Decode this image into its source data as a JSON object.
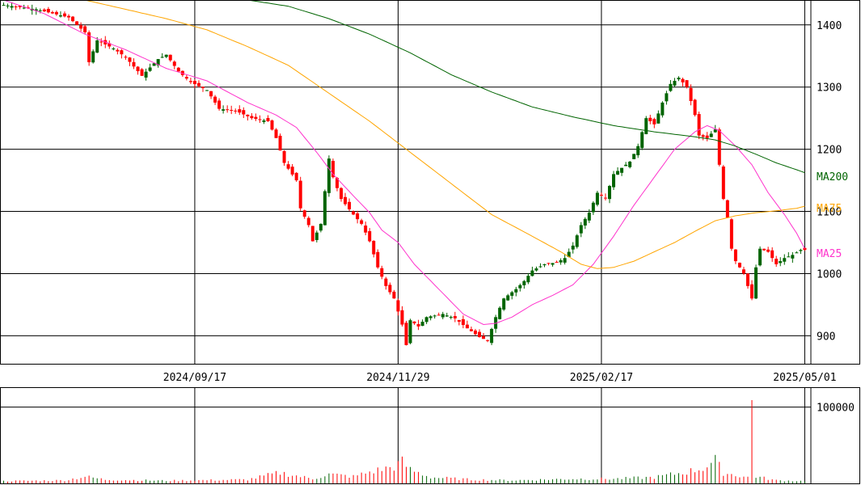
{
  "colors": {
    "up": "#006400",
    "down": "#ff0000",
    "ma_short": "#ff33cc",
    "ma_mid": "#ffa500",
    "ma_long": "#006400",
    "grid": "#000000"
  },
  "legend": {
    "ma_long_label": "MA200",
    "ma_mid_label": "MA75",
    "ma_short_label": "MA25"
  },
  "chart_data": {
    "type": "candlestick",
    "grid": true,
    "price_axis": {
      "range": [
        855,
        1440
      ],
      "ticks": [
        {
          "value": 1400,
          "label": "1400"
        },
        {
          "value": 1300,
          "label": "1300"
        },
        {
          "value": 1200,
          "label": "1200"
        },
        {
          "value": 1100,
          "label": "1100"
        },
        {
          "value": 1000,
          "label": "1000"
        },
        {
          "value": 900,
          "label": "900"
        }
      ]
    },
    "volume_axis": {
      "range": [
        0,
        125000
      ],
      "ticks": [
        {
          "value": 100000,
          "label": "100000"
        }
      ]
    },
    "date_ticks": [
      {
        "index": 47,
        "label": "2024/09/17"
      },
      {
        "index": 97,
        "label": "2024/11/29"
      },
      {
        "index": 147,
        "label": "2025/02/17"
      },
      {
        "index": 197,
        "label": "2025/05/01"
      }
    ],
    "ohlc_anchors": [
      [
        0,
        1432
      ],
      [
        8,
        1425
      ],
      [
        16,
        1412
      ],
      [
        20,
        1388
      ],
      [
        21,
        1340
      ],
      [
        23,
        1375
      ],
      [
        27,
        1362
      ],
      [
        30,
        1348
      ],
      [
        34,
        1318
      ],
      [
        38,
        1345
      ],
      [
        40,
        1352
      ],
      [
        43,
        1325
      ],
      [
        46,
        1308
      ],
      [
        50,
        1295
      ],
      [
        53,
        1265
      ],
      [
        57,
        1262
      ],
      [
        61,
        1250
      ],
      [
        65,
        1245
      ],
      [
        67,
        1218
      ],
      [
        69,
        1178
      ],
      [
        72,
        1150
      ],
      [
        73,
        1105
      ],
      [
        75,
        1078
      ],
      [
        76,
        1052
      ],
      [
        78,
        1080
      ],
      [
        80,
        1185
      ],
      [
        81,
        1155
      ],
      [
        83,
        1120
      ],
      [
        86,
        1095
      ],
      [
        88,
        1080
      ],
      [
        90,
        1052
      ],
      [
        92,
        1010
      ],
      [
        94,
        980
      ],
      [
        96,
        960
      ],
      [
        98,
        918
      ],
      [
        99,
        885
      ],
      [
        100,
        925
      ],
      [
        102,
        915
      ],
      [
        104,
        930
      ],
      [
        108,
        935
      ],
      [
        111,
        928
      ],
      [
        114,
        912
      ],
      [
        117,
        898
      ],
      [
        119,
        892
      ],
      [
        121,
        930
      ],
      [
        123,
        960
      ],
      [
        126,
        975
      ],
      [
        128,
        988
      ],
      [
        130,
        1005
      ],
      [
        133,
        1015
      ],
      [
        136,
        1018
      ],
      [
        138,
        1025
      ],
      [
        140,
        1045
      ],
      [
        142,
        1078
      ],
      [
        144,
        1098
      ],
      [
        146,
        1130
      ],
      [
        148,
        1122
      ],
      [
        150,
        1160
      ],
      [
        152,
        1170
      ],
      [
        154,
        1180
      ],
      [
        156,
        1205
      ],
      [
        158,
        1250
      ],
      [
        160,
        1240
      ],
      [
        162,
        1275
      ],
      [
        164,
        1305
      ],
      [
        166,
        1315
      ],
      [
        168,
        1300
      ],
      [
        170,
        1255
      ],
      [
        171,
        1222
      ],
      [
        173,
        1218
      ],
      [
        175,
        1232
      ],
      [
        176,
        1175
      ],
      [
        177,
        1120
      ],
      [
        178,
        1090
      ],
      [
        179,
        1040
      ],
      [
        180,
        1020
      ],
      [
        182,
        1000
      ],
      [
        183,
        980
      ],
      [
        184,
        960
      ],
      [
        185,
        1010
      ],
      [
        186,
        1040
      ],
      [
        188,
        1035
      ],
      [
        190,
        1015
      ],
      [
        192,
        1025
      ],
      [
        194,
        1030
      ],
      [
        196,
        1038
      ],
      [
        197,
        1038
      ]
    ],
    "volume_anchors": [
      [
        0,
        3000
      ],
      [
        15,
        4000
      ],
      [
        20,
        9000
      ],
      [
        25,
        5000
      ],
      [
        40,
        3500
      ],
      [
        60,
        5000
      ],
      [
        68,
        14000
      ],
      [
        72,
        10000
      ],
      [
        76,
        6000
      ],
      [
        80,
        12000
      ],
      [
        86,
        9000
      ],
      [
        90,
        15000
      ],
      [
        96,
        22000
      ],
      [
        98,
        28000
      ],
      [
        100,
        18000
      ],
      [
        105,
        8000
      ],
      [
        115,
        5000
      ],
      [
        125,
        4000
      ],
      [
        140,
        6000
      ],
      [
        150,
        6000
      ],
      [
        160,
        8000
      ],
      [
        168,
        15000
      ],
      [
        172,
        20000
      ],
      [
        175,
        30000
      ],
      [
        177,
        14000
      ],
      [
        183,
        8000
      ],
      [
        184,
        108000
      ],
      [
        185,
        9000
      ],
      [
        190,
        4000
      ],
      [
        197,
        3000
      ]
    ],
    "series": [
      {
        "name": "MA25",
        "role": "ma_short",
        "anchors": [
          [
            0,
            1440
          ],
          [
            10,
            1418
          ],
          [
            20,
            1385
          ],
          [
            30,
            1360
          ],
          [
            40,
            1330
          ],
          [
            50,
            1310
          ],
          [
            60,
            1275
          ],
          [
            67,
            1255
          ],
          [
            72,
            1235
          ],
          [
            77,
            1195
          ],
          [
            81,
            1160
          ],
          [
            86,
            1125
          ],
          [
            90,
            1098
          ],
          [
            93,
            1070
          ],
          [
            97,
            1050
          ],
          [
            101,
            1015
          ],
          [
            107,
            975
          ],
          [
            113,
            935
          ],
          [
            118,
            918
          ],
          [
            121,
            920
          ],
          [
            125,
            930
          ],
          [
            130,
            950
          ],
          [
            135,
            965
          ],
          [
            140,
            982
          ],
          [
            145,
            1015
          ],
          [
            150,
            1060
          ],
          [
            155,
            1110
          ],
          [
            160,
            1155
          ],
          [
            165,
            1200
          ],
          [
            170,
            1228
          ],
          [
            173,
            1238
          ],
          [
            176,
            1230
          ],
          [
            180,
            1205
          ],
          [
            184,
            1175
          ],
          [
            188,
            1130
          ],
          [
            192,
            1095
          ],
          [
            195,
            1065
          ],
          [
            197,
            1040
          ]
        ]
      },
      {
        "name": "MA75",
        "role": "ma_mid",
        "anchors": [
          [
            20,
            1440
          ],
          [
            30,
            1425
          ],
          [
            40,
            1410
          ],
          [
            50,
            1392
          ],
          [
            60,
            1365
          ],
          [
            70,
            1335
          ],
          [
            80,
            1290
          ],
          [
            90,
            1245
          ],
          [
            100,
            1195
          ],
          [
            110,
            1145
          ],
          [
            120,
            1095
          ],
          [
            130,
            1060
          ],
          [
            137,
            1035
          ],
          [
            142,
            1015
          ],
          [
            146,
            1008
          ],
          [
            150,
            1010
          ],
          [
            155,
            1020
          ],
          [
            160,
            1035
          ],
          [
            165,
            1050
          ],
          [
            170,
            1068
          ],
          [
            175,
            1085
          ],
          [
            180,
            1093
          ],
          [
            185,
            1098
          ],
          [
            190,
            1101
          ],
          [
            195,
            1105
          ],
          [
            198,
            1110
          ]
        ]
      },
      {
        "name": "MA200",
        "role": "ma_long",
        "anchors": [
          [
            60,
            1440
          ],
          [
            70,
            1430
          ],
          [
            80,
            1410
          ],
          [
            90,
            1385
          ],
          [
            100,
            1355
          ],
          [
            110,
            1320
          ],
          [
            120,
            1292
          ],
          [
            130,
            1268
          ],
          [
            140,
            1252
          ],
          [
            150,
            1238
          ],
          [
            160,
            1228
          ],
          [
            170,
            1220
          ],
          [
            175,
            1215
          ],
          [
            180,
            1205
          ],
          [
            185,
            1192
          ],
          [
            190,
            1178
          ],
          [
            195,
            1167
          ],
          [
            198,
            1160
          ]
        ]
      }
    ]
  }
}
